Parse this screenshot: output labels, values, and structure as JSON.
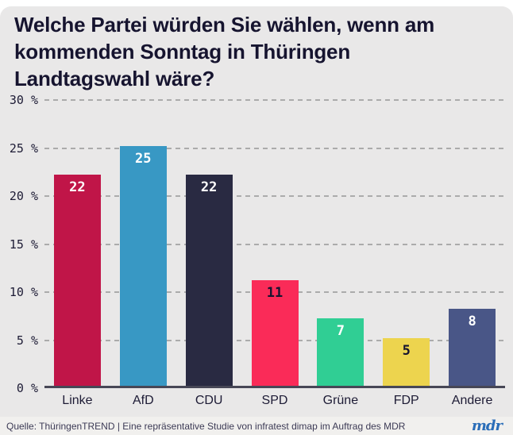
{
  "header": {
    "title_lines": [
      "Welche Partei würden Sie wählen, wenn am",
      "kommenden Sonntag in Thüringen",
      "Landtagswahl wäre?"
    ]
  },
  "chart_data": {
    "type": "bar",
    "title": "Welche Partei würden Sie wählen, wenn am kommenden Sonntag in Thüringen Landtagswahl wäre?",
    "categories": [
      "Linke",
      "AfD",
      "CDU",
      "SPD",
      "Grüne",
      "FDP",
      "Andere"
    ],
    "values": [
      22,
      25,
      22,
      11,
      7,
      5,
      8
    ],
    "bar_colors": [
      "#c01548",
      "#3898c4",
      "#292a42",
      "#fa2b58",
      "#30ce94",
      "#edd44e",
      "#495687"
    ],
    "value_label_colors": [
      "#ffffff",
      "#ffffff",
      "#ffffff",
      "#16142f",
      "#ffffff",
      "#16142f",
      "#ffffff"
    ],
    "xlabel": "",
    "ylabel": "",
    "ylim": [
      0,
      30
    ],
    "ytick_step": 5,
    "ytick_suffix": " %",
    "grid": "horizontal-dashed",
    "legend": "none"
  },
  "footer": {
    "source": "Quelle: ThüringenTREND | Eine repräsentative Studie von infratest dimap im Auftrag des MDR",
    "logo_text": "mdr"
  },
  "colors": {
    "card_background": "#e9e8e8",
    "page_background": "#ffffff",
    "title_text": "#16142f",
    "axis_text": "#1d1b35",
    "gridline": "#ababab",
    "baseline": "#474756",
    "footer_background": "#f1f0ee",
    "logo_blue": "#2a6db8"
  }
}
